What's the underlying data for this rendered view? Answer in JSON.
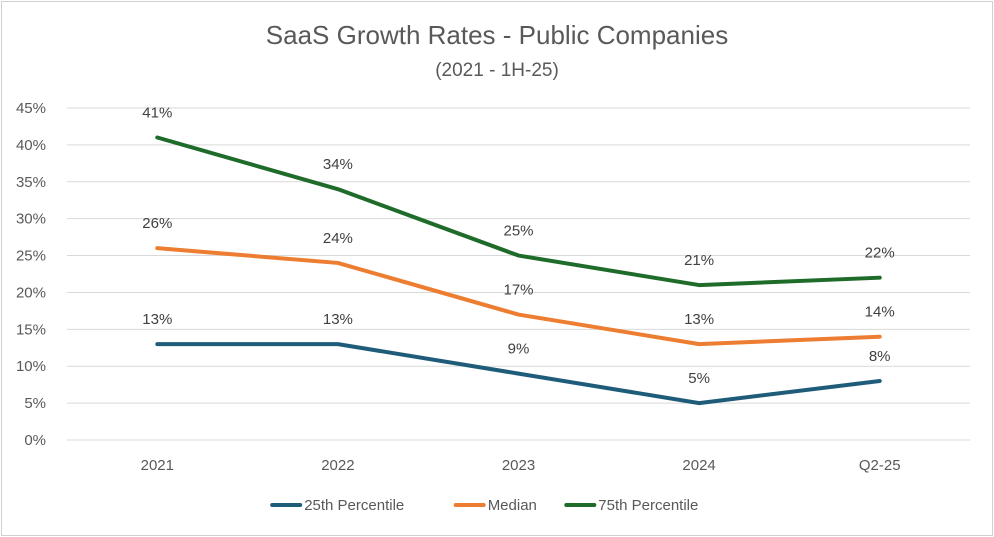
{
  "chart_data": {
    "type": "line",
    "title": "SaaS Growth Rates - Public Companies",
    "subtitle": "(2021 - 1H-25)",
    "categories": [
      "2021",
      "2022",
      "2023",
      "2024",
      "Q2-25"
    ],
    "ylim": [
      0,
      45
    ],
    "yticks": [
      0,
      5,
      10,
      15,
      20,
      25,
      30,
      35,
      40,
      45
    ],
    "ytick_labels": [
      "0%",
      "5%",
      "10%",
      "15%",
      "20%",
      "25%",
      "30%",
      "35%",
      "40%",
      "45%"
    ],
    "grid": true,
    "legend_position": "bottom",
    "series": [
      {
        "name": "25th Percentile",
        "color": "#1f5c7a",
        "values": [
          13,
          13,
          9,
          5,
          8
        ],
        "labels": [
          "13%",
          "13%",
          "9%",
          "5%",
          "8%"
        ]
      },
      {
        "name": "Median",
        "color": "#ed7d31",
        "values": [
          26,
          24,
          17,
          13,
          14
        ],
        "labels": [
          "26%",
          "24%",
          "17%",
          "13%",
          "14%"
        ]
      },
      {
        "name": "75th Percentile",
        "color": "#1f6b2a",
        "values": [
          41,
          34,
          25,
          21,
          22
        ],
        "labels": [
          "41%",
          "34%",
          "25%",
          "21%",
          "22%"
        ]
      }
    ]
  }
}
